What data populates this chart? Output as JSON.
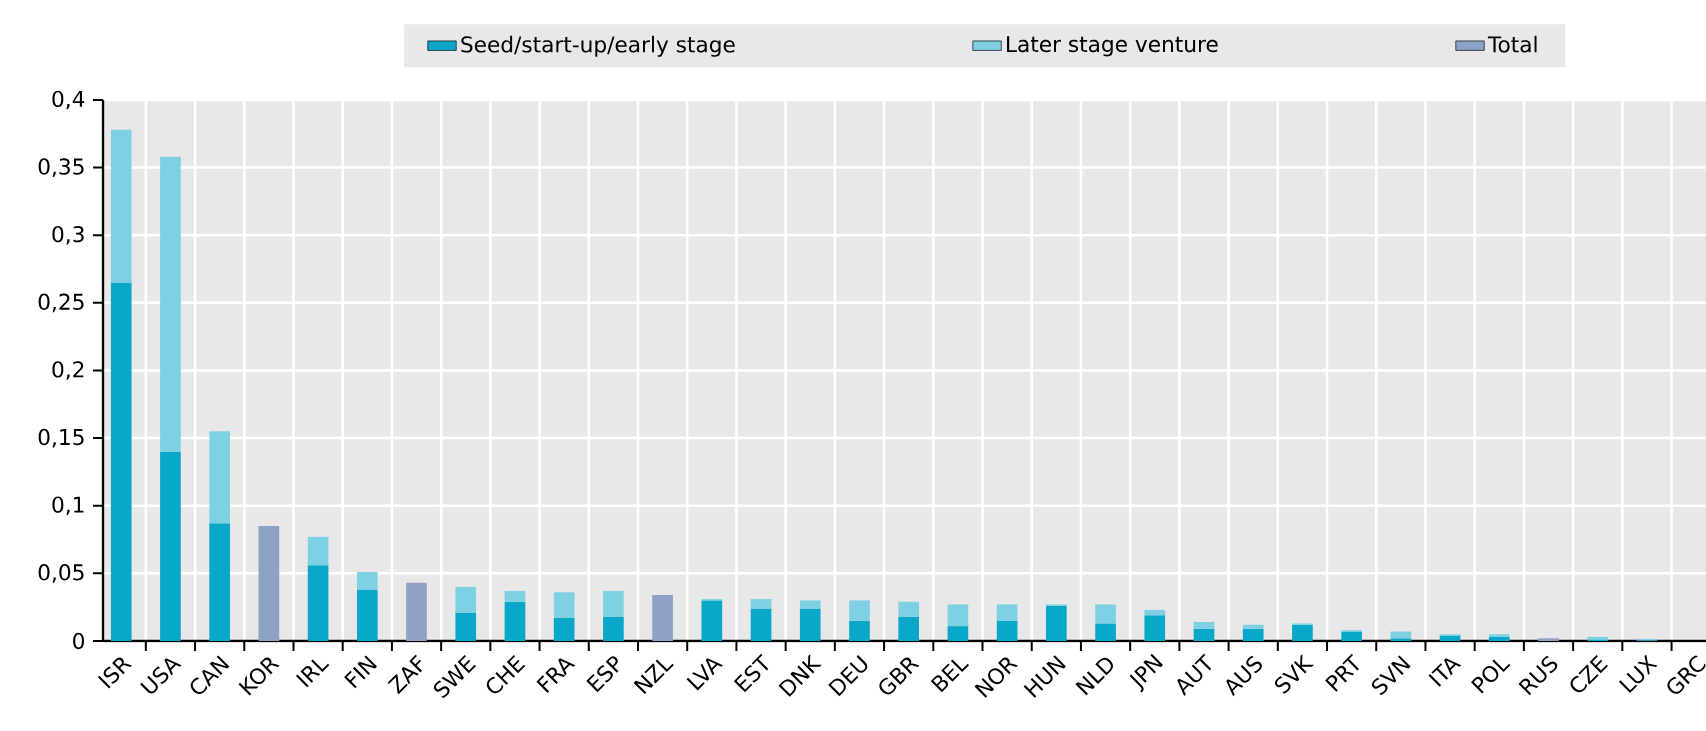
{
  "chart_data": {
    "type": "bar",
    "stacked": true,
    "grid": true,
    "legend": "top",
    "categories": [
      "ISR",
      "USA",
      "CAN",
      "KOR",
      "IRL",
      "FIN",
      "ZAF",
      "SWE",
      "CHE",
      "FRA",
      "ESP",
      "NZL",
      "LVA",
      "EST",
      "DNK",
      "DEU",
      "GBR",
      "BEL",
      "NOR",
      "HUN",
      "NLD",
      "JPN",
      "AUT",
      "AUS",
      "SVK",
      "PRT",
      "SVN",
      "ITA",
      "POL",
      "RUS",
      "CZE",
      "LUX",
      "GRC"
    ],
    "series": [
      {
        "name": "Seed/start-up/early stage",
        "color": "#0aa8c8",
        "values": [
          0.265,
          0.14,
          0.087,
          null,
          0.056,
          0.038,
          null,
          0.021,
          0.029,
          0.017,
          0.018,
          null,
          0.03,
          0.024,
          0.024,
          0.015,
          0.018,
          0.011,
          0.015,
          0.026,
          0.013,
          0.019,
          0.009,
          0.009,
          0.012,
          0.007,
          0.002,
          0.004,
          0.003,
          null,
          0.001,
          0.0005,
          null
        ]
      },
      {
        "name": "Later stage venture",
        "color": "#7fd0e2",
        "values": [
          0.113,
          0.218,
          0.068,
          null,
          0.021,
          0.013,
          null,
          0.019,
          0.008,
          0.019,
          0.019,
          null,
          0.001,
          0.007,
          0.006,
          0.015,
          0.011,
          0.016,
          0.012,
          0.001,
          0.014,
          0.004,
          0.005,
          0.003,
          0.001,
          0.001,
          0.005,
          0.001,
          0.002,
          null,
          0.002,
          0.001,
          null
        ]
      },
      {
        "name": "Total",
        "color": "#8ea2c8",
        "values": [
          null,
          null,
          null,
          0.085,
          null,
          null,
          0.043,
          null,
          null,
          null,
          null,
          0.034,
          null,
          null,
          null,
          null,
          null,
          null,
          null,
          null,
          null,
          null,
          null,
          null,
          null,
          null,
          null,
          null,
          null,
          0.002,
          null,
          null,
          null
        ]
      }
    ],
    "ylim": [
      0,
      0.4
    ],
    "yticks": [
      0,
      {
        "value": 0.05,
        "label": "0,05"
      },
      {
        "value": 0.1,
        "label": "0,1"
      },
      {
        "value": 0.15,
        "label": "0,15"
      },
      {
        "value": 0.2,
        "label": "0,2"
      },
      {
        "value": 0.25,
        "label": "0,25"
      },
      {
        "value": 0.3,
        "label": "0,3"
      },
      {
        "value": 0.35,
        "label": "0,35"
      },
      {
        "value": 0.4,
        "label": "0,4"
      }
    ]
  }
}
